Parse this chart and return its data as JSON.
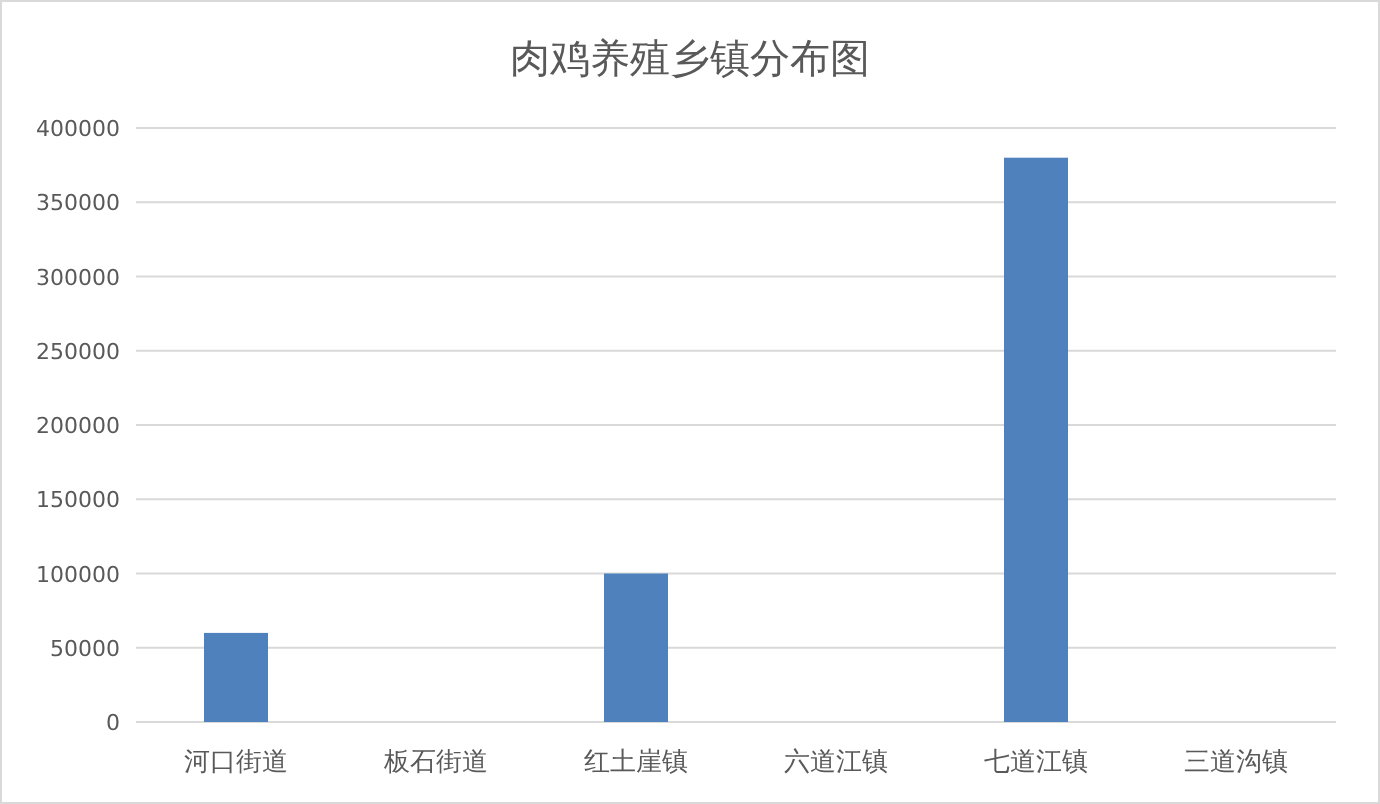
{
  "chart_data": {
    "type": "bar",
    "title": "肉鸡养殖乡镇分布图",
    "categories": [
      "河口街道",
      "板石街道",
      "红土崖镇",
      "六道江镇",
      "七道江镇",
      "三道沟镇"
    ],
    "values": [
      60000,
      0,
      100000,
      0,
      380000,
      0
    ],
    "color": "#4f81bd",
    "ylim": [
      0,
      400000
    ],
    "yticks": [
      0,
      50000,
      100000,
      150000,
      200000,
      250000,
      300000,
      350000,
      400000
    ],
    "grid": "y"
  }
}
